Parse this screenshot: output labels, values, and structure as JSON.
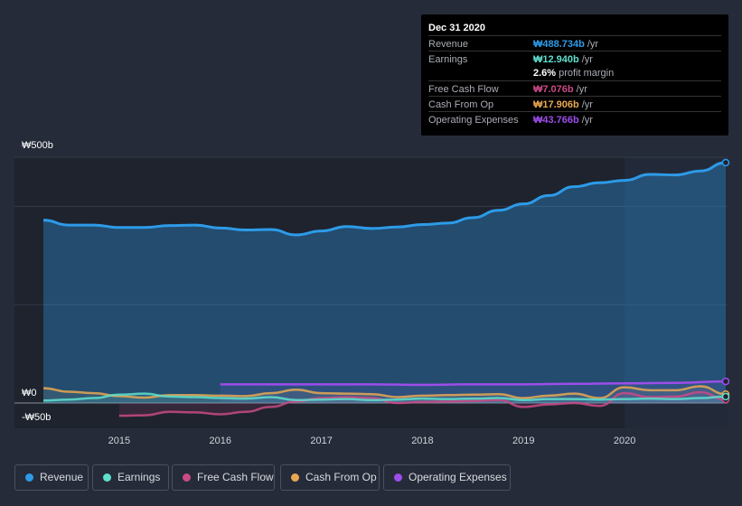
{
  "colors": {
    "revenue": "#2d9be8",
    "earnings": "#5ee0cf",
    "free_cash_flow": "#c94a86",
    "cash_from_op": "#e8a852",
    "operating_expenses": "#9d4dea"
  },
  "tooltip": {
    "date": "Dec 31 2020",
    "rows": [
      {
        "label": "Revenue",
        "value": "₩488.734b",
        "unit": "/yr"
      },
      {
        "label": "Earnings",
        "value": "₩12.940b",
        "unit": "/yr"
      },
      {
        "label": "",
        "value": "2.6%",
        "unit": "profit margin"
      },
      {
        "label": "Free Cash Flow",
        "value": "₩7.076b",
        "unit": "/yr"
      },
      {
        "label": "Cash From Op",
        "value": "₩17.906b",
        "unit": "/yr"
      },
      {
        "label": "Operating Expenses",
        "value": "₩43.766b",
        "unit": "/yr"
      }
    ]
  },
  "legend": [
    {
      "label": "Revenue"
    },
    {
      "label": "Earnings"
    },
    {
      "label": "Free Cash Flow"
    },
    {
      "label": "Cash From Op"
    },
    {
      "label": "Operating Expenses"
    }
  ],
  "chart_data": {
    "type": "area",
    "title": "",
    "xlabel": "",
    "ylabel": "",
    "y_labels": [
      "₩500b",
      "₩0",
      "-₩50b"
    ],
    "x_tick_labels": [
      "2015",
      "2016",
      "2017",
      "2018",
      "2019",
      "2020"
    ],
    "ylim": [
      -50,
      500
    ],
    "xlim": [
      2014.25,
      2021.0
    ],
    "forecast_shade_from": 2020.0,
    "series": [
      {
        "name": "Revenue",
        "points": [
          [
            2014.25,
            372
          ],
          [
            2014.5,
            362
          ],
          [
            2014.75,
            362
          ],
          [
            2015.0,
            357
          ],
          [
            2015.25,
            357
          ],
          [
            2015.5,
            361
          ],
          [
            2015.75,
            362
          ],
          [
            2016.0,
            356
          ],
          [
            2016.25,
            352
          ],
          [
            2016.5,
            353
          ],
          [
            2016.75,
            342
          ],
          [
            2017.0,
            350
          ],
          [
            2017.25,
            359
          ],
          [
            2017.5,
            355
          ],
          [
            2017.75,
            358
          ],
          [
            2018.0,
            363
          ],
          [
            2018.25,
            366
          ],
          [
            2018.5,
            377
          ],
          [
            2018.75,
            392
          ],
          [
            2019.0,
            405
          ],
          [
            2019.25,
            422
          ],
          [
            2019.5,
            440
          ],
          [
            2019.75,
            448
          ],
          [
            2020.0,
            453
          ],
          [
            2020.25,
            465
          ],
          [
            2020.5,
            464
          ],
          [
            2020.75,
            472
          ],
          [
            2021.0,
            489
          ]
        ]
      },
      {
        "name": "Earnings",
        "points": [
          [
            2014.25,
            5
          ],
          [
            2014.5,
            7
          ],
          [
            2014.75,
            10
          ],
          [
            2015.0,
            17
          ],
          [
            2015.25,
            19
          ],
          [
            2015.5,
            13
          ],
          [
            2015.75,
            12
          ],
          [
            2016.0,
            10
          ],
          [
            2016.25,
            9
          ],
          [
            2016.5,
            12
          ],
          [
            2016.75,
            6
          ],
          [
            2017.0,
            7
          ],
          [
            2017.25,
            8
          ],
          [
            2017.5,
            6
          ],
          [
            2017.75,
            7
          ],
          [
            2018.0,
            9
          ],
          [
            2018.25,
            8
          ],
          [
            2018.5,
            9
          ],
          [
            2018.75,
            10
          ],
          [
            2019.0,
            6
          ],
          [
            2019.25,
            8
          ],
          [
            2019.5,
            8
          ],
          [
            2019.75,
            7
          ],
          [
            2020.0,
            8
          ],
          [
            2020.25,
            9
          ],
          [
            2020.5,
            8
          ],
          [
            2020.75,
            10
          ],
          [
            2021.0,
            13
          ]
        ]
      },
      {
        "name": "Free Cash Flow",
        "points": [
          [
            2015.0,
            -26
          ],
          [
            2015.25,
            -25
          ],
          [
            2015.5,
            -18
          ],
          [
            2015.75,
            -19
          ],
          [
            2016.0,
            -23
          ],
          [
            2016.25,
            -18
          ],
          [
            2016.5,
            -8
          ],
          [
            2016.75,
            3
          ],
          [
            2017.0,
            10
          ],
          [
            2017.25,
            12
          ],
          [
            2017.5,
            10
          ],
          [
            2017.75,
            0
          ],
          [
            2018.0,
            2
          ],
          [
            2018.25,
            3
          ],
          [
            2018.5,
            4
          ],
          [
            2018.75,
            6
          ],
          [
            2019.0,
            -8
          ],
          [
            2019.25,
            -3
          ],
          [
            2019.5,
            0
          ],
          [
            2019.75,
            -6
          ],
          [
            2020.0,
            20
          ],
          [
            2020.25,
            12
          ],
          [
            2020.5,
            13
          ],
          [
            2020.75,
            22
          ],
          [
            2021.0,
            7
          ]
        ]
      },
      {
        "name": "Cash From Op",
        "points": [
          [
            2014.25,
            30
          ],
          [
            2014.5,
            23
          ],
          [
            2014.75,
            20
          ],
          [
            2015.0,
            14
          ],
          [
            2015.25,
            11
          ],
          [
            2015.5,
            16
          ],
          [
            2015.75,
            16
          ],
          [
            2016.0,
            15
          ],
          [
            2016.25,
            14
          ],
          [
            2016.5,
            20
          ],
          [
            2016.75,
            27
          ],
          [
            2017.0,
            20
          ],
          [
            2017.25,
            19
          ],
          [
            2017.5,
            18
          ],
          [
            2017.75,
            12
          ],
          [
            2018.0,
            15
          ],
          [
            2018.25,
            16
          ],
          [
            2018.5,
            17
          ],
          [
            2018.75,
            18
          ],
          [
            2019.0,
            10
          ],
          [
            2019.25,
            15
          ],
          [
            2019.5,
            19
          ],
          [
            2019.75,
            10
          ],
          [
            2020.0,
            32
          ],
          [
            2020.25,
            26
          ],
          [
            2020.5,
            26
          ],
          [
            2020.75,
            34
          ],
          [
            2021.0,
            18
          ]
        ]
      },
      {
        "name": "Operating Expenses",
        "points": [
          [
            2016.0,
            38
          ],
          [
            2016.5,
            38
          ],
          [
            2017.0,
            38
          ],
          [
            2017.5,
            38
          ],
          [
            2018.0,
            37
          ],
          [
            2018.5,
            38
          ],
          [
            2019.0,
            38
          ],
          [
            2019.5,
            39
          ],
          [
            2020.0,
            40
          ],
          [
            2020.5,
            41
          ],
          [
            2021.0,
            44
          ]
        ]
      }
    ]
  }
}
